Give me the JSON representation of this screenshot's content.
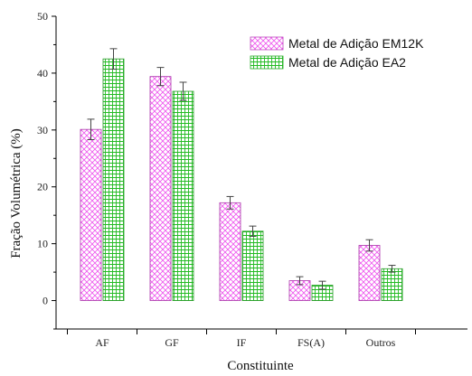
{
  "chart_data": {
    "type": "bar",
    "xlabel": "Constituinte",
    "ylabel": "Fração Volumétrica (%)",
    "ylim": [
      -5,
      50
    ],
    "yticks": [
      0,
      10,
      20,
      30,
      40,
      50
    ],
    "grid": false,
    "legend_position": "top-right",
    "categories": [
      "AF",
      "GF",
      "IF",
      "FS(A)",
      "Outros"
    ],
    "series": [
      {
        "name": "Metal de Adição EM12K",
        "values": [
          30.1,
          39.4,
          17.2,
          3.5,
          9.7
        ],
        "errors": [
          1.8,
          1.6,
          1.1,
          0.7,
          1.0
        ],
        "color": "#ff66ff",
        "pattern": "crosshatch"
      },
      {
        "name": "Metal de Adição EA2",
        "values": [
          42.5,
          36.8,
          12.2,
          2.7,
          5.6
        ],
        "errors": [
          1.8,
          1.6,
          0.9,
          0.7,
          0.6
        ],
        "color": "#33cc33",
        "pattern": "grid"
      }
    ]
  }
}
